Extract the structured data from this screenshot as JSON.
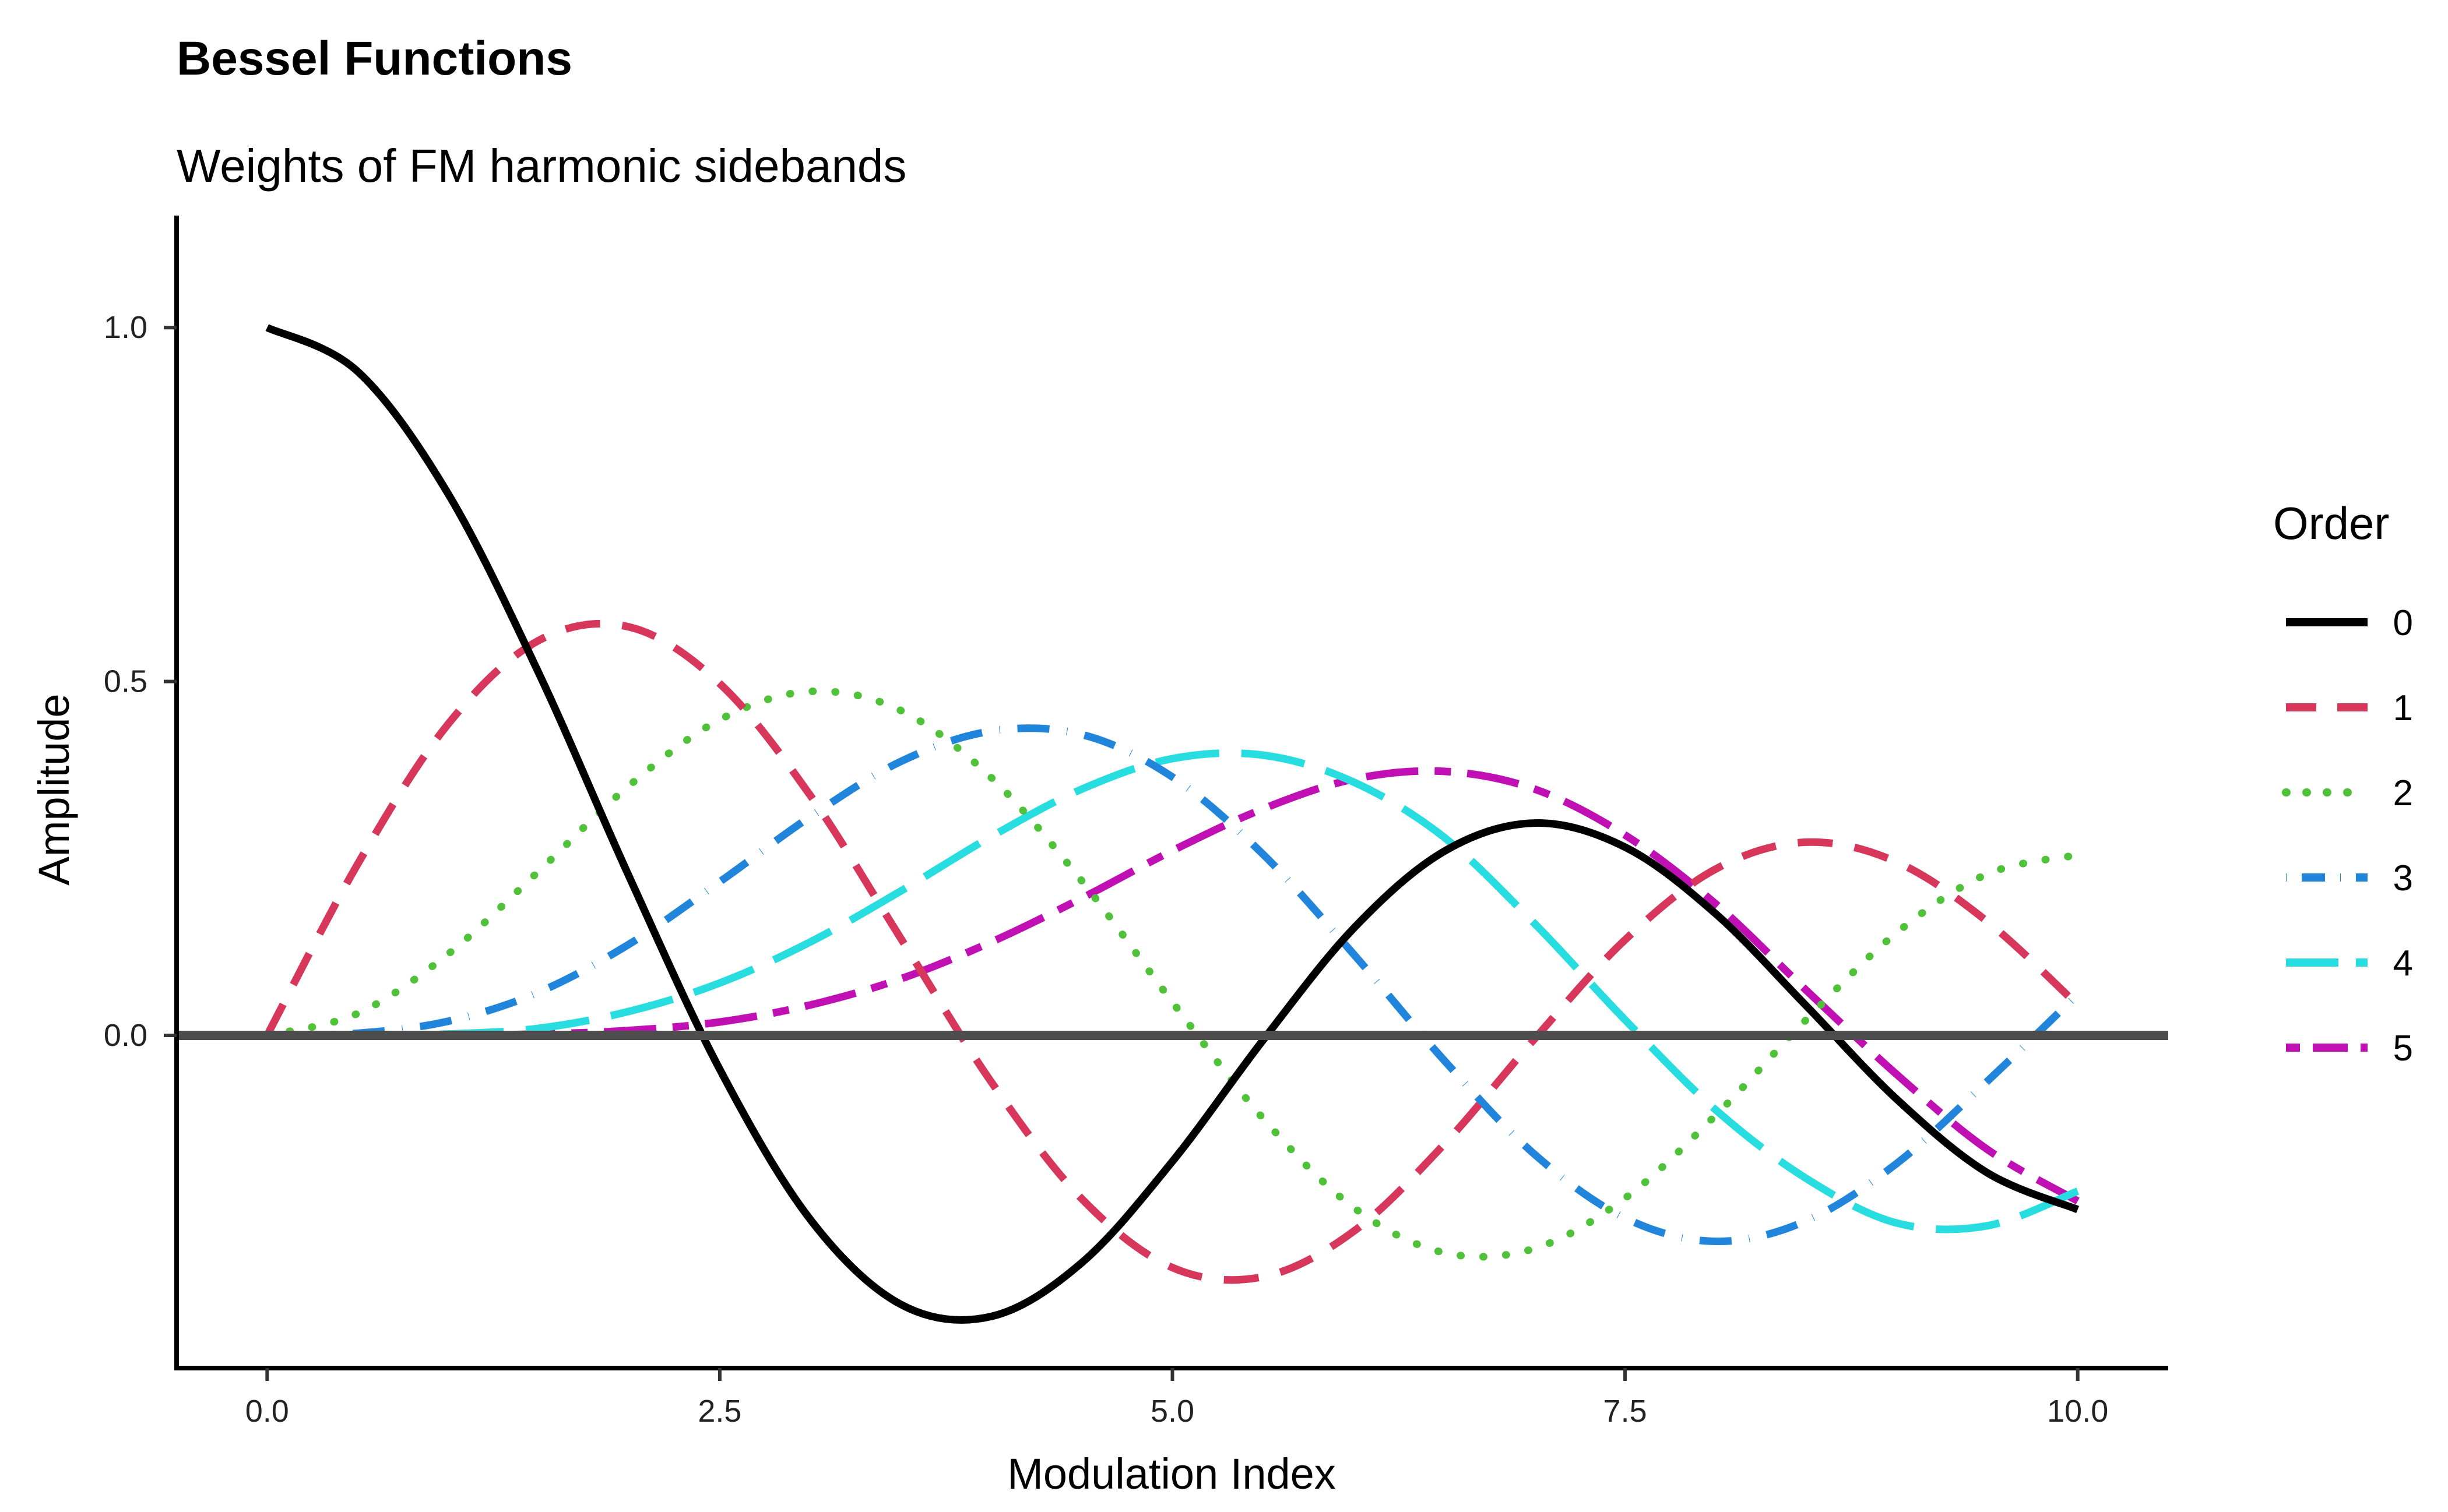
{
  "chart_data": {
    "type": "line",
    "title": "Bessel Functions",
    "subtitle": "Weights of FM harmonic sidebands",
    "xlabel": "Modulation Index",
    "ylabel": "Amplitude",
    "xlim": [
      -0.5,
      10.5
    ],
    "ylim": [
      -0.47,
      1.15
    ],
    "x_ticks": [
      "0.0",
      "2.5",
      "5.0",
      "7.5",
      "10.0"
    ],
    "y_ticks": [
      "-0.0",
      "0.0",
      "0.5",
      "1.0"
    ],
    "y_tick_labels": [
      "0.0",
      "0.5",
      "1.0"
    ],
    "grid": false,
    "reference_line_y": 0,
    "legend": {
      "title": "Order",
      "position": "right"
    },
    "x": [
      0,
      0.5,
      1,
      1.5,
      2,
      2.5,
      3,
      3.5,
      4,
      4.5,
      5,
      5.5,
      6,
      6.5,
      7,
      7.5,
      8,
      8.5,
      9,
      9.5,
      10
    ],
    "series": [
      {
        "name": "0",
        "color": "#000000",
        "dash": "solid",
        "values": [
          1.0,
          0.938,
          0.765,
          0.512,
          0.224,
          -0.048,
          -0.26,
          -0.38,
          -0.397,
          -0.321,
          -0.178,
          -0.007,
          0.151,
          0.26,
          0.3,
          0.266,
          0.172,
          0.042,
          -0.09,
          -0.194,
          -0.246
        ]
      },
      {
        "name": "1",
        "color": "#d6375a",
        "dash": "dashed",
        "values": [
          0.0,
          0.242,
          0.44,
          0.558,
          0.577,
          0.497,
          0.339,
          0.137,
          -0.066,
          -0.231,
          -0.328,
          -0.341,
          -0.277,
          -0.154,
          -0.005,
          0.135,
          0.235,
          0.273,
          0.245,
          0.161,
          0.043
        ]
      },
      {
        "name": "2",
        "color": "#4fc23a",
        "dash": "dotted",
        "values": [
          0.0,
          0.031,
          0.115,
          0.232,
          0.353,
          0.446,
          0.486,
          0.459,
          0.364,
          0.218,
          0.047,
          -0.117,
          -0.243,
          -0.307,
          -0.301,
          -0.23,
          -0.113,
          0.022,
          0.145,
          0.228,
          0.255
        ]
      },
      {
        "name": "3",
        "color": "#2185dc",
        "dash": "dotdash",
        "values": [
          0.0,
          0.003,
          0.02,
          0.061,
          0.129,
          0.217,
          0.309,
          0.387,
          0.43,
          0.425,
          0.365,
          0.256,
          0.115,
          -0.035,
          -0.168,
          -0.258,
          -0.291,
          -0.262,
          -0.181,
          -0.065,
          0.058
        ]
      },
      {
        "name": "4",
        "color": "#28dde0",
        "dash": "longdash",
        "values": [
          0.0,
          0.0,
          0.002,
          0.01,
          0.034,
          0.074,
          0.132,
          0.204,
          0.281,
          0.348,
          0.391,
          0.396,
          0.358,
          0.28,
          0.158,
          0.022,
          -0.105,
          -0.202,
          -0.265,
          -0.269,
          -0.22
        ]
      },
      {
        "name": "5",
        "color": "#c010b4",
        "dash": "twodash",
        "values": [
          0.0,
          0.0,
          0.0,
          0.002,
          0.007,
          0.019,
          0.043,
          0.08,
          0.132,
          0.194,
          0.261,
          0.32,
          0.362,
          0.373,
          0.348,
          0.283,
          0.186,
          0.064,
          -0.055,
          -0.161,
          -0.234
        ]
      }
    ]
  }
}
